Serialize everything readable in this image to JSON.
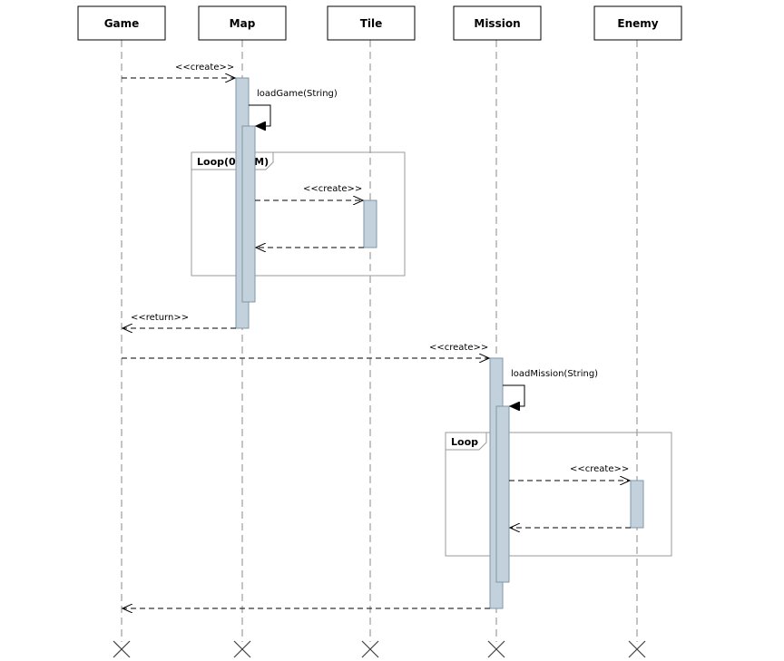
{
  "participants": [
    {
      "id": "game",
      "label": "Game"
    },
    {
      "id": "map",
      "label": "Map"
    },
    {
      "id": "tile",
      "label": "Tile"
    },
    {
      "id": "mission",
      "label": "Mission"
    },
    {
      "id": "enemy",
      "label": "Enemy"
    }
  ],
  "fragments": [
    {
      "id": "loop1",
      "label": "Loop(0,NxM)"
    },
    {
      "id": "loop2",
      "label": "Loop"
    }
  ],
  "messages": [
    {
      "id": "m1",
      "label": "<<create>>",
      "from": "Game",
      "to": "Map",
      "style": "dashed-open"
    },
    {
      "id": "m2",
      "label": "loadGame(String)",
      "from": "Map",
      "to": "Map",
      "style": "self-solid"
    },
    {
      "id": "m3",
      "label": "<<create>>",
      "from": "Map",
      "to": "Tile",
      "style": "dashed-open"
    },
    {
      "id": "m4",
      "label": "",
      "from": "Tile",
      "to": "Map",
      "style": "dashed-open"
    },
    {
      "id": "m5",
      "label": "<<return>>",
      "from": "Map",
      "to": "Game",
      "style": "dashed-open"
    },
    {
      "id": "m6",
      "label": "<<create>>",
      "from": "Game",
      "to": "Mission",
      "style": "dashed-open"
    },
    {
      "id": "m7",
      "label": "loadMission(String)",
      "from": "Mission",
      "to": "Mission",
      "style": "self-solid"
    },
    {
      "id": "m8",
      "label": "<<create>>",
      "from": "Mission",
      "to": "Enemy",
      "style": "dashed-open"
    },
    {
      "id": "m9",
      "label": "",
      "from": "Enemy",
      "to": "Mission",
      "style": "dashed-open"
    },
    {
      "id": "m10",
      "label": "",
      "from": "Mission",
      "to": "Game",
      "style": "dashed-open"
    }
  ],
  "colors": {
    "activation_fill": "#c2d1dc",
    "activation_border": "#7f97a9",
    "lifeline": "#8a8a8a",
    "frame_border": "#999999"
  }
}
